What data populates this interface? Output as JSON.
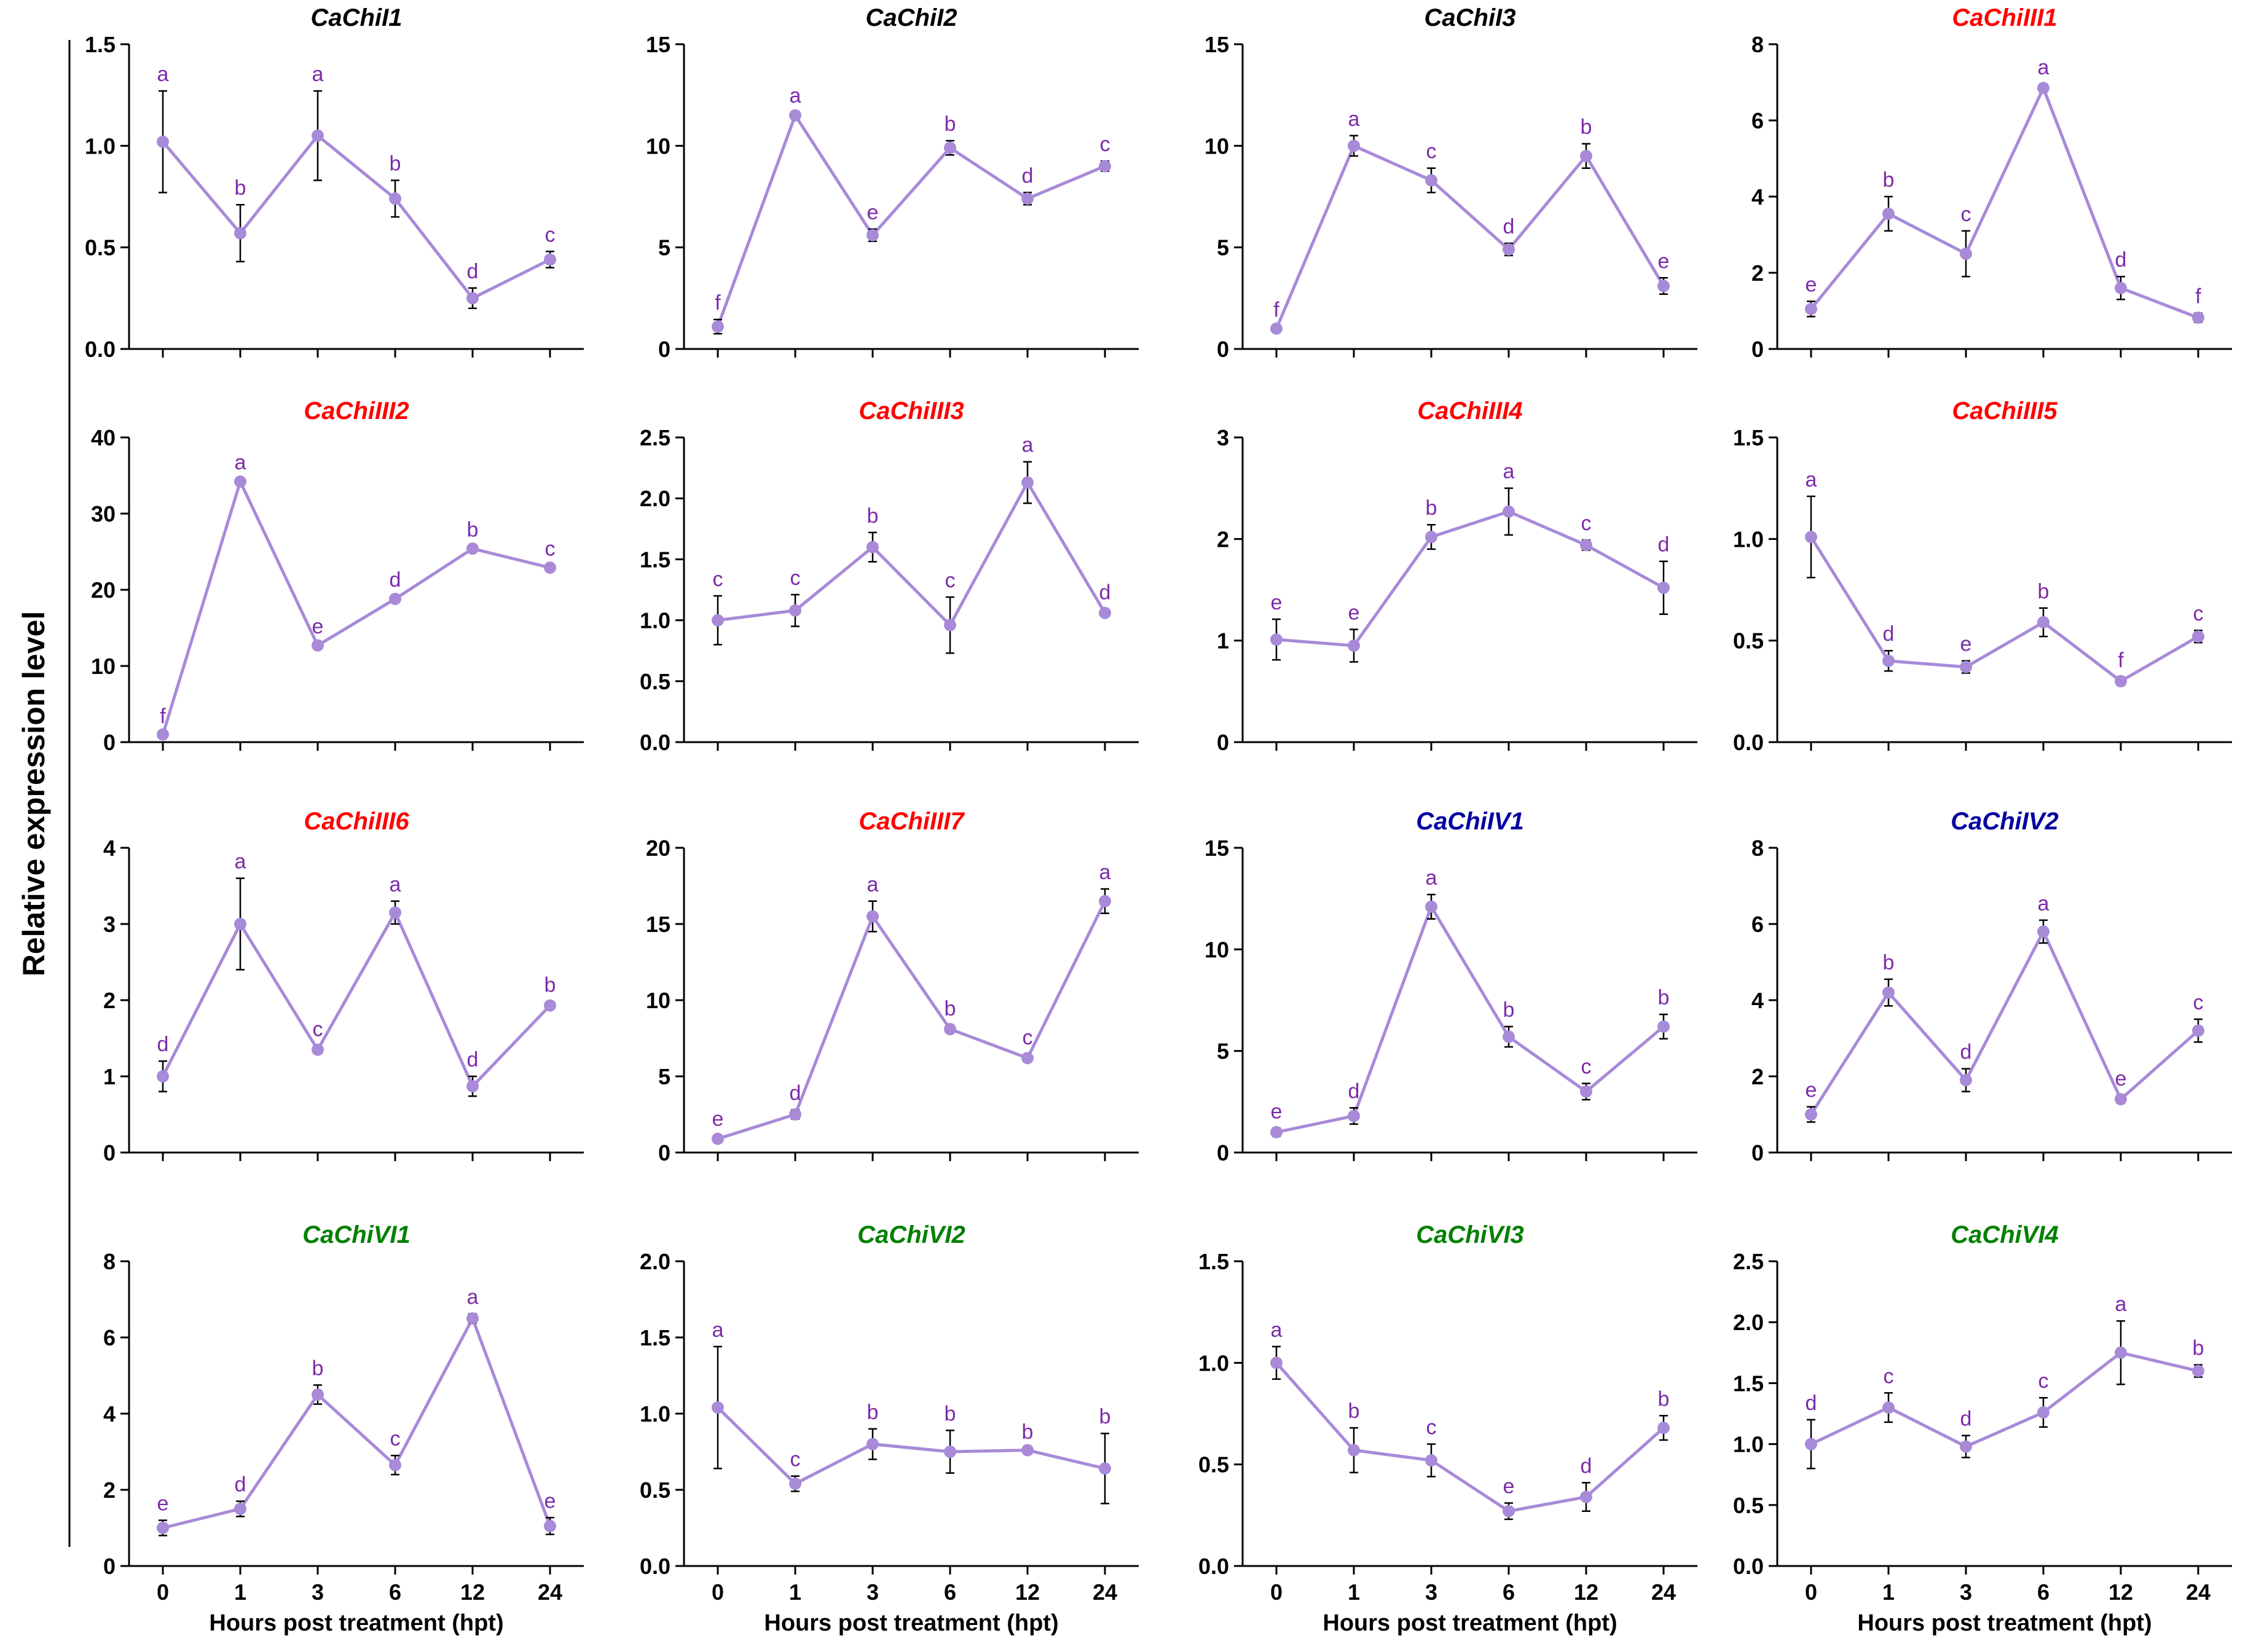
{
  "figure": {
    "ylabel": "Relative expression level",
    "xlabel": "Hours post treatment (hpt)",
    "series_color": "#a88ad8",
    "letter_color": "#7b2aa8"
  },
  "chart_data": [
    {
      "type": "line",
      "title": "CaChiI1",
      "title_color": "#000000",
      "categories": [
        "0",
        "1",
        "3",
        "6",
        "12",
        "24"
      ],
      "values": [
        1.02,
        0.57,
        1.05,
        0.74,
        0.25,
        0.44
      ],
      "errors": [
        0.25,
        0.14,
        0.22,
        0.09,
        0.05,
        0.04
      ],
      "labels": [
        "a",
        "b",
        "a",
        "b",
        "d",
        "c"
      ],
      "ylim": [
        0,
        1.5
      ],
      "yticks": [
        "0.0",
        "0.5",
        "1.0",
        "1.5"
      ],
      "xlabel": "",
      "ylabel": "Relative expression level"
    },
    {
      "type": "line",
      "title": "CaChiI2",
      "title_color": "#000000",
      "categories": [
        "0",
        "1",
        "3",
        "6",
        "12",
        "24"
      ],
      "values": [
        1.1,
        11.5,
        5.6,
        9.9,
        7.4,
        9.0
      ],
      "errors": [
        0.35,
        0.15,
        0.3,
        0.35,
        0.3,
        0.25
      ],
      "labels": [
        "f",
        "a",
        "e",
        "b",
        "d",
        "c"
      ],
      "ylim": [
        0,
        15
      ],
      "yticks": [
        "0",
        "5",
        "10",
        "15"
      ],
      "xlabel": "",
      "ylabel": ""
    },
    {
      "type": "line",
      "title": "CaChiI3",
      "title_color": "#000000",
      "categories": [
        "0",
        "1",
        "3",
        "6",
        "12",
        "24"
      ],
      "values": [
        1.0,
        10.0,
        8.3,
        4.9,
        9.5,
        3.1
      ],
      "errors": [
        0.1,
        0.5,
        0.6,
        0.3,
        0.6,
        0.4
      ],
      "labels": [
        "f",
        "a",
        "c",
        "d",
        "b",
        "e"
      ],
      "ylim": [
        0,
        15
      ],
      "yticks": [
        "0",
        "5",
        "10",
        "15"
      ],
      "xlabel": "",
      "ylabel": ""
    },
    {
      "type": "line",
      "title": "CaChiIII1",
      "title_color": "#ff0000",
      "categories": [
        "0",
        "1",
        "3",
        "6",
        "12",
        "24"
      ],
      "values": [
        1.05,
        3.55,
        2.5,
        6.85,
        1.6,
        0.82
      ],
      "errors": [
        0.2,
        0.45,
        0.6,
        0.1,
        0.3,
        0.12
      ],
      "labels": [
        "e",
        "b",
        "c",
        "a",
        "d",
        "f"
      ],
      "ylim": [
        0,
        8
      ],
      "yticks": [
        "0",
        "2",
        "4",
        "6",
        "8"
      ],
      "xlabel": "",
      "ylabel": ""
    },
    {
      "type": "line",
      "title": "CaChiIII2",
      "title_color": "#ff0000",
      "categories": [
        "0",
        "1",
        "3",
        "6",
        "12",
        "24"
      ],
      "values": [
        1.0,
        34.2,
        12.7,
        18.8,
        25.4,
        22.9
      ],
      "errors": [
        0.2,
        0.3,
        0.3,
        0.3,
        0.3,
        0.3
      ],
      "labels": [
        "f",
        "a",
        "e",
        "d",
        "b",
        "c"
      ],
      "ylim": [
        0,
        40
      ],
      "yticks": [
        "0",
        "10",
        "20",
        "30",
        "40"
      ],
      "xlabel": "",
      "ylabel": ""
    },
    {
      "type": "line",
      "title": "CaChiIII3",
      "title_color": "#ff0000",
      "categories": [
        "0",
        "1",
        "3",
        "6",
        "12",
        "24"
      ],
      "values": [
        1.0,
        1.08,
        1.6,
        0.96,
        2.13,
        1.06
      ],
      "errors": [
        0.2,
        0.13,
        0.12,
        0.23,
        0.17,
        0.03
      ],
      "labels": [
        "c",
        "c",
        "b",
        "c",
        "a",
        "d"
      ],
      "ylim": [
        0,
        2.5
      ],
      "yticks": [
        "0.0",
        "0.5",
        "1.0",
        "1.5",
        "2.0",
        "2.5"
      ],
      "xlabel": "",
      "ylabel": ""
    },
    {
      "type": "line",
      "title": "CaChiIII4",
      "title_color": "#ff0000",
      "categories": [
        "0",
        "1",
        "3",
        "6",
        "12",
        "24"
      ],
      "values": [
        1.01,
        0.95,
        2.02,
        2.27,
        1.94,
        1.52
      ],
      "errors": [
        0.2,
        0.16,
        0.12,
        0.23,
        0.05,
        0.26
      ],
      "labels": [
        "e",
        "e",
        "b",
        "a",
        "c",
        "d"
      ],
      "ylim": [
        0,
        3
      ],
      "yticks": [
        "0",
        "1",
        "2",
        "3"
      ],
      "xlabel": "",
      "ylabel": ""
    },
    {
      "type": "line",
      "title": "CaChiIII5",
      "title_color": "#ff0000",
      "categories": [
        "0",
        "1",
        "3",
        "6",
        "12",
        "24"
      ],
      "values": [
        1.01,
        0.4,
        0.37,
        0.59,
        0.3,
        0.52
      ],
      "errors": [
        0.2,
        0.05,
        0.03,
        0.07,
        0.02,
        0.03
      ],
      "labels": [
        "a",
        "d",
        "e",
        "b",
        "f",
        "c"
      ],
      "ylim": [
        0,
        1.5
      ],
      "yticks": [
        "0.0",
        "0.5",
        "1.0",
        "1.5"
      ],
      "xlabel": "",
      "ylabel": ""
    },
    {
      "type": "line",
      "title": "CaChiIII6",
      "title_color": "#ff0000",
      "categories": [
        "0",
        "1",
        "3",
        "6",
        "12",
        "24"
      ],
      "values": [
        1.0,
        3.0,
        1.35,
        3.15,
        0.87,
        1.93
      ],
      "errors": [
        0.2,
        0.6,
        0.05,
        0.15,
        0.13,
        0.05
      ],
      "labels": [
        "d",
        "a",
        "c",
        "a",
        "d",
        "b"
      ],
      "ylim": [
        0,
        4
      ],
      "yticks": [
        "0",
        "1",
        "2",
        "3",
        "4"
      ],
      "xlabel": "",
      "ylabel": ""
    },
    {
      "type": "line",
      "title": "CaChiIII7",
      "title_color": "#ff0000",
      "categories": [
        "0",
        "1",
        "3",
        "6",
        "12",
        "24"
      ],
      "values": [
        0.9,
        2.5,
        15.5,
        8.1,
        6.2,
        16.5
      ],
      "errors": [
        0.2,
        0.3,
        1.0,
        0.25,
        0.25,
        0.8
      ],
      "labels": [
        "e",
        "d",
        "a",
        "b",
        "c",
        "a"
      ],
      "ylim": [
        0,
        20
      ],
      "yticks": [
        "0",
        "5",
        "10",
        "15",
        "20"
      ],
      "xlabel": "",
      "ylabel": ""
    },
    {
      "type": "line",
      "title": "CaChiIV1",
      "title_color": "#0000a0",
      "categories": [
        "0",
        "1",
        "3",
        "6",
        "12",
        "24"
      ],
      "values": [
        1.0,
        1.8,
        12.1,
        5.7,
        3.0,
        6.2
      ],
      "errors": [
        0.2,
        0.4,
        0.6,
        0.5,
        0.4,
        0.6
      ],
      "labels": [
        "e",
        "d",
        "a",
        "b",
        "c",
        "b"
      ],
      "ylim": [
        0,
        15
      ],
      "yticks": [
        "0",
        "5",
        "10",
        "15"
      ],
      "xlabel": "",
      "ylabel": ""
    },
    {
      "type": "line",
      "title": "CaChiIV2",
      "title_color": "#0000a0",
      "categories": [
        "0",
        "1",
        "3",
        "6",
        "12",
        "24"
      ],
      "values": [
        1.0,
        4.2,
        1.9,
        5.8,
        1.4,
        3.2
      ],
      "errors": [
        0.2,
        0.35,
        0.3,
        0.3,
        0.1,
        0.3
      ],
      "labels": [
        "e",
        "b",
        "d",
        "a",
        "e",
        "c"
      ],
      "ylim": [
        0,
        8
      ],
      "yticks": [
        "0",
        "2",
        "4",
        "6",
        "8"
      ],
      "xlabel": "",
      "ylabel": ""
    },
    {
      "type": "line",
      "title": "CaChiVI1",
      "title_color": "#008000",
      "categories": [
        "0",
        "1",
        "3",
        "6",
        "12",
        "24"
      ],
      "values": [
        1.0,
        1.5,
        4.5,
        2.65,
        6.5,
        1.05
      ],
      "errors": [
        0.2,
        0.2,
        0.25,
        0.25,
        0.12,
        0.22
      ],
      "labels": [
        "e",
        "d",
        "b",
        "c",
        "a",
        "e"
      ],
      "ylim": [
        0,
        8
      ],
      "yticks": [
        "0",
        "2",
        "4",
        "6",
        "8"
      ],
      "xlabel": "Hours post treatment (hpt)",
      "ylabel": ""
    },
    {
      "type": "line",
      "title": "CaChiVI2",
      "title_color": "#008000",
      "categories": [
        "0",
        "1",
        "3",
        "6",
        "12",
        "24"
      ],
      "values": [
        1.04,
        0.54,
        0.8,
        0.75,
        0.76,
        0.64
      ],
      "errors": [
        0.4,
        0.05,
        0.1,
        0.14,
        0.01,
        0.23
      ],
      "labels": [
        "a",
        "c",
        "b",
        "b",
        "b",
        "b"
      ],
      "ylim": [
        0,
        2
      ],
      "yticks": [
        "0.0",
        "0.5",
        "1.0",
        "1.5",
        "2.0"
      ],
      "xlabel": "Hours post treatment (hpt)",
      "ylabel": ""
    },
    {
      "type": "line",
      "title": "CaChiVI3",
      "title_color": "#008000",
      "categories": [
        "0",
        "1",
        "3",
        "6",
        "12",
        "24"
      ],
      "values": [
        1.0,
        0.57,
        0.52,
        0.27,
        0.34,
        0.68
      ],
      "errors": [
        0.08,
        0.11,
        0.08,
        0.04,
        0.07,
        0.06
      ],
      "labels": [
        "a",
        "b",
        "c",
        "e",
        "d",
        "b"
      ],
      "ylim": [
        0,
        1.5
      ],
      "yticks": [
        "0.0",
        "0.5",
        "1.0",
        "1.5"
      ],
      "xlabel": "Hours post treatment (hpt)",
      "ylabel": ""
    },
    {
      "type": "line",
      "title": "CaChiVI4",
      "title_color": "#008000",
      "categories": [
        "0",
        "1",
        "3",
        "6",
        "12",
        "24"
      ],
      "values": [
        1.0,
        1.3,
        0.98,
        1.26,
        1.75,
        1.6
      ],
      "errors": [
        0.2,
        0.12,
        0.09,
        0.12,
        0.26,
        0.05
      ],
      "labels": [
        "d",
        "c",
        "d",
        "c",
        "a",
        "b"
      ],
      "ylim": [
        0,
        2.5
      ],
      "yticks": [
        "0.0",
        "0.5",
        "1.0",
        "1.5",
        "2.0",
        "2.5"
      ],
      "xlabel": "Hours post treatment (hpt)",
      "ylabel": ""
    }
  ]
}
